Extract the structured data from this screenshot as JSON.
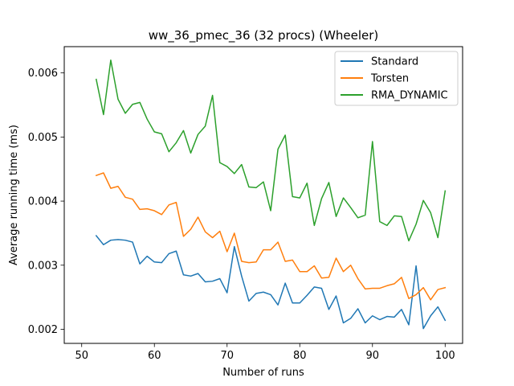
{
  "chart_data": {
    "type": "line",
    "title": "ww_36_pmec_36 (32 procs) (Wheeler)",
    "xlabel": "Number of runs",
    "ylabel": "Average running time (ms)",
    "xlim": [
      47.6,
      102.4
    ],
    "ylim": [
      0.00178,
      0.00641
    ],
    "xticks": [
      50,
      60,
      70,
      80,
      90,
      100
    ],
    "yticks": [
      0.002,
      0.003,
      0.004,
      0.005,
      0.006
    ],
    "ytick_labels": [
      "0.002",
      "0.003",
      "0.004",
      "0.005",
      "0.006"
    ],
    "grid": false,
    "legend_position": "top-right",
    "x": [
      52,
      53,
      54,
      55,
      56,
      57,
      58,
      59,
      60,
      61,
      62,
      63,
      64,
      65,
      66,
      67,
      68,
      69,
      70,
      71,
      72,
      73,
      74,
      75,
      76,
      77,
      78,
      79,
      80,
      81,
      82,
      83,
      84,
      85,
      86,
      87,
      88,
      89,
      90,
      91,
      92,
      93,
      94,
      95,
      96,
      97,
      98,
      99,
      100
    ],
    "series": [
      {
        "name": "Standard",
        "color": "#1f77b4",
        "values": [
          0.00346,
          0.00332,
          0.00339,
          0.0034,
          0.00339,
          0.00336,
          0.00302,
          0.00314,
          0.00305,
          0.00304,
          0.00318,
          0.00322,
          0.00285,
          0.00283,
          0.00287,
          0.00274,
          0.00275,
          0.00279,
          0.00257,
          0.00329,
          0.00283,
          0.00244,
          0.00256,
          0.00258,
          0.00254,
          0.00238,
          0.00272,
          0.00241,
          0.00241,
          0.00253,
          0.00266,
          0.00264,
          0.00231,
          0.00252,
          0.0021,
          0.00217,
          0.00232,
          0.0021,
          0.00221,
          0.00215,
          0.0022,
          0.00219,
          0.00231,
          0.00207,
          0.00299,
          0.00201,
          0.00221,
          0.00235,
          0.00214
        ]
      },
      {
        "name": "Torsten",
        "color": "#ff7f0e",
        "values": [
          0.0044,
          0.00444,
          0.0042,
          0.00423,
          0.00406,
          0.00403,
          0.00387,
          0.00388,
          0.00385,
          0.00379,
          0.00394,
          0.00398,
          0.00345,
          0.00356,
          0.00375,
          0.00352,
          0.00343,
          0.00353,
          0.00321,
          0.0035,
          0.00306,
          0.00304,
          0.00305,
          0.00324,
          0.00324,
          0.00336,
          0.00306,
          0.00308,
          0.0029,
          0.0029,
          0.00299,
          0.0028,
          0.00281,
          0.00311,
          0.0029,
          0.003,
          0.00279,
          0.00263,
          0.00264,
          0.00264,
          0.00268,
          0.00271,
          0.00281,
          0.00248,
          0.00254,
          0.00265,
          0.00246,
          0.00262,
          0.00265
        ]
      },
      {
        "name": "RMA_DYNAMIC",
        "color": "#2ca02c",
        "values": [
          0.0059,
          0.00535,
          0.0062,
          0.00559,
          0.00537,
          0.00551,
          0.00554,
          0.00528,
          0.00508,
          0.00505,
          0.00477,
          0.00491,
          0.0051,
          0.00475,
          0.00504,
          0.00517,
          0.00565,
          0.0046,
          0.00454,
          0.00443,
          0.00457,
          0.00422,
          0.00421,
          0.0043,
          0.00385,
          0.00481,
          0.00503,
          0.00407,
          0.00405,
          0.00428,
          0.00362,
          0.00404,
          0.00429,
          0.00376,
          0.00405,
          0.0039,
          0.00374,
          0.00378,
          0.00493,
          0.00368,
          0.00362,
          0.00377,
          0.00376,
          0.00338,
          0.00364,
          0.00401,
          0.00382,
          0.00343,
          0.00416
        ]
      }
    ]
  }
}
